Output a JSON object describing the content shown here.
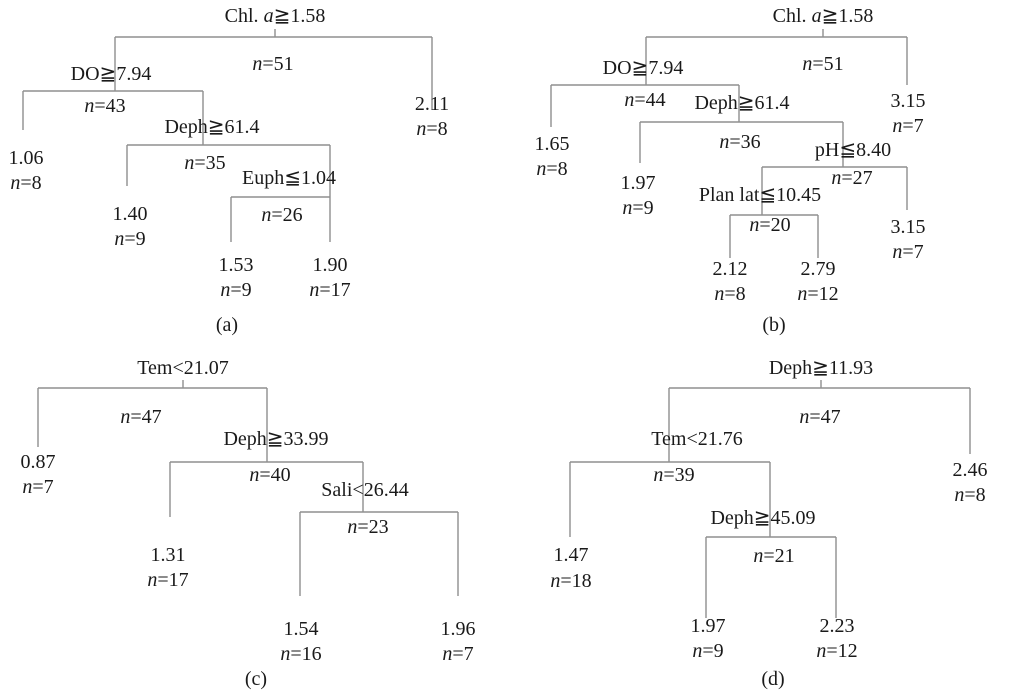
{
  "figure": {
    "panels": [
      {
        "id": "a",
        "label": "(a)",
        "root": {
          "split": "Chl. a≧1.58",
          "n": "=51",
          "yes": {
            "split": "DO≧7.94",
            "n": "=43",
            "yes": {
              "value": "1.06",
              "n": "=8"
            },
            "no": {
              "split": "Deph≧61.4",
              "n": "=35",
              "yes": {
                "value": "1.40",
                "n": "=9"
              },
              "no": {
                "split": "Euph≦1.04",
                "n": "=26",
                "yes": {
                  "value": "1.53",
                  "n": "=9"
                },
                "no": {
                  "value": "1.90",
                  "n": "=17"
                }
              }
            }
          },
          "no": {
            "value": "2.11",
            "n": "=8"
          }
        }
      },
      {
        "id": "b",
        "label": "(b)",
        "root": {
          "split": "Chl. a≧1.58",
          "n": "=51",
          "yes": {
            "split": "DO≧7.94",
            "n": "=44",
            "yes": {
              "value": "1.65",
              "n": "=8"
            },
            "no": {
              "split": "Deph≧61.4",
              "n": "=36",
              "yes": {
                "value": "1.97",
                "n": "=9"
              },
              "no": {
                "split": "pH≦8.40",
                "n": "=27",
                "yes": {
                  "split": "Plan lat≦10.45",
                  "n": "=20",
                  "yes": {
                    "value": "2.12",
                    "n": "=8"
                  },
                  "no": {
                    "value": "2.79",
                    "n": "=12"
                  }
                },
                "no": {
                  "value": "3.15",
                  "n": "=7"
                }
              }
            }
          },
          "no": {
            "value": "3.15",
            "n": "=7"
          }
        }
      },
      {
        "id": "c",
        "label": "(c)",
        "root": {
          "split": "Tem<21.07",
          "n": "=47",
          "yes": {
            "value": "0.87",
            "n": "=7"
          },
          "no": {
            "split": "Deph≧33.99",
            "n": "=40",
            "yes": {
              "value": "1.31",
              "n": "=17"
            },
            "no": {
              "split": "Sali<26.44",
              "n": "=23",
              "yes": {
                "value": "1.54",
                "n": "=16"
              },
              "no": {
                "value": "1.96",
                "n": "=7"
              }
            }
          }
        }
      },
      {
        "id": "d",
        "label": "(d)",
        "root": {
          "split": "Deph≧11.93",
          "n": "=47",
          "yes": {
            "split": "Tem<21.76",
            "n": "=39",
            "yes": {
              "value": "1.47",
              "n": "=18"
            },
            "no": {
              "split": "Deph≧45.09",
              "n": "=21",
              "yes": {
                "value": "1.97",
                "n": "=9"
              },
              "no": {
                "value": "2.23",
                "n": "=12"
              }
            }
          },
          "no": {
            "value": "2.46",
            "n": "=8"
          }
        }
      }
    ]
  }
}
